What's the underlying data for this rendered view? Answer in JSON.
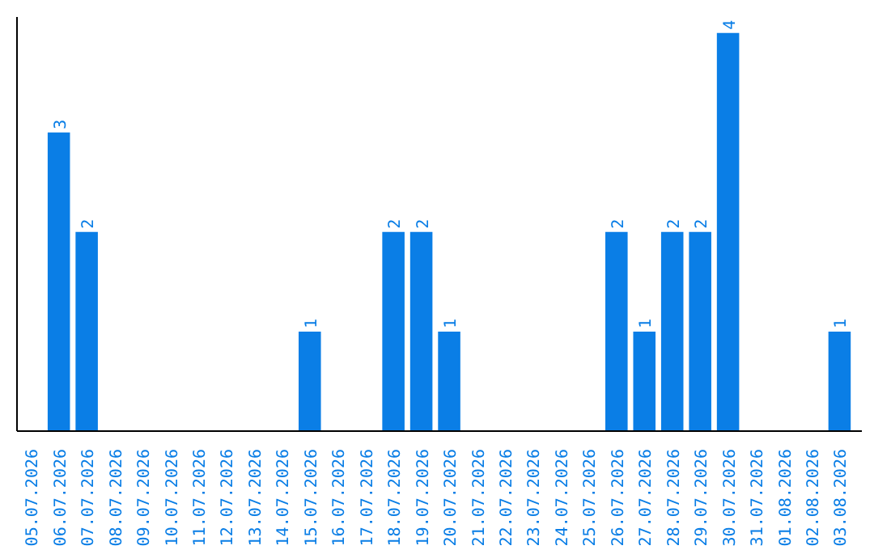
{
  "chart_data": {
    "type": "bar",
    "categories": [
      "05.07.2026",
      "06.07.2026",
      "07.07.2026",
      "08.07.2026",
      "09.07.2026",
      "10.07.2026",
      "11.07.2026",
      "12.07.2026",
      "13.07.2026",
      "14.07.2026",
      "15.07.2026",
      "16.07.2026",
      "17.07.2026",
      "18.07.2026",
      "19.07.2026",
      "20.07.2026",
      "21.07.2026",
      "22.07.2026",
      "23.07.2026",
      "24.07.2026",
      "25.07.2026",
      "26.07.2026",
      "27.07.2026",
      "28.07.2026",
      "29.07.2026",
      "30.07.2026",
      "31.07.2026",
      "01.08.2026",
      "02.08.2026",
      "03.08.2026"
    ],
    "values": [
      0,
      3,
      2,
      0,
      0,
      0,
      0,
      0,
      0,
      0,
      1,
      0,
      0,
      2,
      2,
      1,
      0,
      0,
      0,
      0,
      0,
      2,
      1,
      2,
      2,
      4,
      0,
      0,
      0,
      1
    ],
    "value_labels": [
      null,
      "3",
      "2",
      null,
      null,
      null,
      null,
      null,
      null,
      null,
      "1",
      null,
      null,
      "2",
      "2",
      "1",
      null,
      null,
      null,
      null,
      null,
      "2",
      "1",
      "2",
      "2",
      "4",
      null,
      null,
      null,
      "1"
    ],
    "color": "#0a7ee6",
    "grid": false
  }
}
